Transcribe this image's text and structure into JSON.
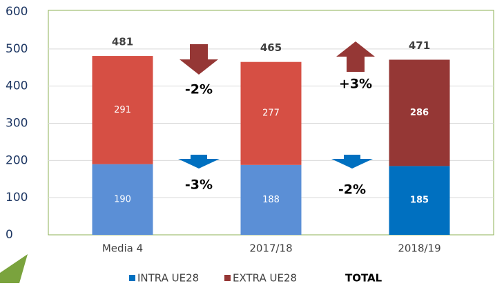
{
  "chart_data": {
    "type": "stacked_bar",
    "categories": [
      "Media 4",
      "2017/18",
      "2018/19"
    ],
    "series": [
      {
        "name": "INTRA UE28",
        "color": "#0070c0",
        "colors": [
          "#5b8fd6",
          "#5b8fd6",
          "#0070c0"
        ],
        "label_bold": [
          false,
          false,
          true
        ],
        "values": [
          190,
          188,
          185
        ]
      },
      {
        "name": "EXTRA UE28",
        "color": "#953735",
        "colors": [
          "#d64f44",
          "#d64f44",
          "#953735"
        ],
        "label_bold": [
          false,
          false,
          true
        ],
        "values": [
          291,
          277,
          286
        ]
      }
    ],
    "totals": {
      "name": "TOTAL",
      "values": [
        481,
        465,
        471
      ]
    },
    "annotations": [
      {
        "text": "-2%",
        "direction": "down",
        "color": "#953735"
      },
      {
        "text": "-3%",
        "direction": "down",
        "color": "#0070c0"
      },
      {
        "text": "+3%",
        "direction": "up",
        "color": "#953735"
      },
      {
        "text": "-2%",
        "direction": "down",
        "color": "#0070c0"
      }
    ],
    "ylim": [
      0,
      600
    ],
    "yticks": [
      0,
      100,
      200,
      300,
      400,
      500,
      600
    ],
    "grid": true
  }
}
